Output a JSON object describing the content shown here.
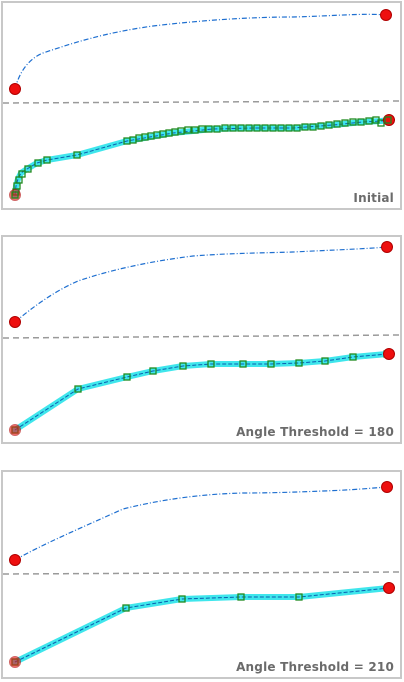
{
  "colors": {
    "line_original": "#1e6fd0",
    "line_simplified": "#0b5fb0",
    "buffer": "#3fe6ec",
    "divider": "#9a9a9a",
    "endpoint_fill": "#ee0f0f",
    "endpoint_stroke": "#b00000",
    "vertex_stroke": "#1f8a1f",
    "panel_border": "#c8c8c8",
    "caption": "#6b6b6b"
  },
  "icons": {
    "endpoint": "red-circle-icon",
    "vertex": "green-square-icon"
  },
  "panels": [
    {
      "id": "initial",
      "caption": "Initial"
    },
    {
      "id": "angle-180",
      "caption": "Angle Threshold = 180"
    },
    {
      "id": "angle-210",
      "caption": "Angle Threshold = 210"
    }
  ]
}
